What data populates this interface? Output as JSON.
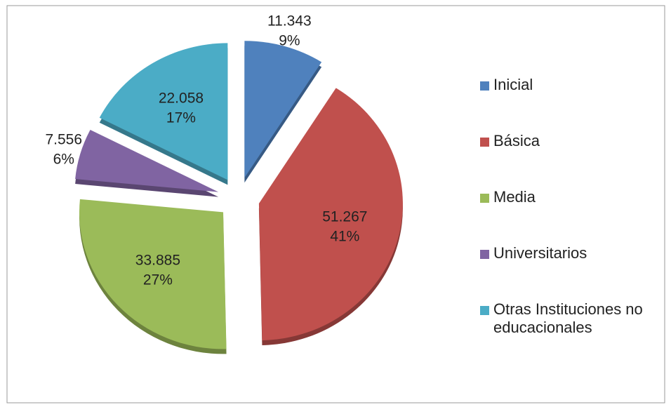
{
  "chart_data": {
    "type": "pie",
    "categories": [
      "Inicial",
      "Básica",
      "Media",
      "Universitarios",
      "Otras Instituciones no educacionales"
    ],
    "values": [
      11343,
      51267,
      33885,
      7556,
      22058
    ],
    "value_labels": [
      "11.343",
      "51.267",
      "33.885",
      "7.556",
      "22.058"
    ],
    "percent_labels": [
      "9%",
      "41%",
      "27%",
      "6%",
      "17%"
    ],
    "colors": [
      "#4f81bd",
      "#c0504d",
      "#9bbb59",
      "#8064a2",
      "#4bacc6"
    ],
    "legend": "right"
  }
}
